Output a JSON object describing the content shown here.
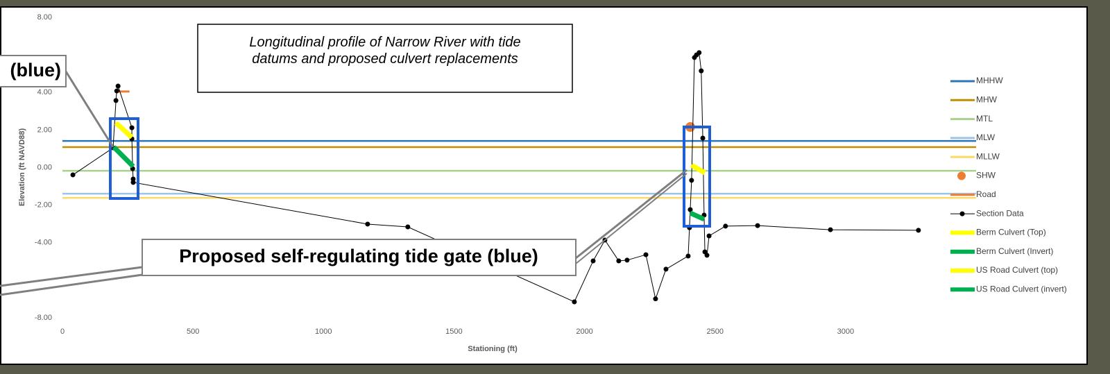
{
  "chart_data": {
    "type": "line",
    "x_label": "Stationing (ft)",
    "y_label": "Elevation (ft NAVD88)",
    "xlim": [
      0,
      3500
    ],
    "xticks": [
      0,
      500,
      1000,
      1500,
      2000,
      2500,
      3000
    ],
    "ylim": [
      -8,
      8
    ],
    "yticks": [
      {
        "value": 8,
        "label": "8.00"
      },
      {
        "value": 4,
        "label": "4.00"
      },
      {
        "value": 2,
        "label": "2.00"
      },
      {
        "value": 0,
        "label": "0.00"
      },
      {
        "value": -2,
        "label": "-2.00"
      },
      {
        "value": -4,
        "label": "-4.00"
      },
      {
        "value": -8,
        "label": "-8.00"
      }
    ],
    "grid": false,
    "legend": "right",
    "annotations": [
      "Longitudinal profile of Narrow River with tide datums and proposed culvert replacements",
      "Proposed self-regulating tide gate (blue)",
      "(blue)"
    ],
    "series": [
      {
        "name": "MHHW",
        "color": "#2e75b6",
        "style": "hline",
        "values": [
          1.42
        ]
      },
      {
        "name": "MHW",
        "color": "#bf8f00",
        "style": "hline",
        "values": [
          1.09
        ]
      },
      {
        "name": "MTL",
        "color": "#a9d18e",
        "style": "hline",
        "values": [
          -0.17
        ]
      },
      {
        "name": "MLW",
        "color": "#9dc3e6",
        "style": "hline",
        "values": [
          -1.39
        ]
      },
      {
        "name": "MLLW",
        "color": "#ffd966",
        "style": "hline",
        "values": [
          -1.61
        ]
      },
      {
        "name": "SHW",
        "color": "#ed7d31",
        "style": "marker",
        "x": [
          2405
        ],
        "values": [
          2.16
        ]
      },
      {
        "name": "Road",
        "color": "#ed7d31",
        "style": "line",
        "x": [
          215,
          257
        ],
        "values": [
          4.05,
          4.05
        ]
      },
      {
        "name": "Section Data",
        "color": "#000000",
        "style": "line-marker",
        "x": [
          40,
          194,
          205,
          208,
          213,
          266,
          266,
          269,
          271,
          271,
          1169,
          1323,
          1961,
          2033,
          2078,
          2131,
          2163,
          2235,
          2272,
          2312,
          2397,
          2402,
          2405,
          2410,
          2421,
          2429,
          2439,
          2447,
          2453,
          2458,
          2461,
          2469,
          2477,
          2540,
          2663,
          2942,
          3279
        ],
        "values": [
          -0.39,
          1.05,
          3.57,
          4.08,
          4.34,
          2.12,
          1.53,
          -0.06,
          -0.61,
          -0.79,
          -3.01,
          -3.16,
          -7.15,
          -4.97,
          -3.86,
          -4.97,
          -4.93,
          -4.64,
          -6.99,
          -5.41,
          -4.71,
          -3.2,
          -2.24,
          -0.68,
          5.86,
          6.0,
          6.12,
          5.15,
          1.57,
          -2.53,
          -4.49,
          -4.67,
          -3.64,
          -3.12,
          -3.09,
          -3.31,
          -3.34
        ]
      },
      {
        "name": "Berm Culvert (Top)",
        "color": "#ffff00",
        "style": "thick",
        "x": [
          205,
          266
        ],
        "values": [
          2.38,
          1.61
        ]
      },
      {
        "name": "Berm Culvert (Invert)",
        "color": "#00b050",
        "style": "thick",
        "x": [
          197,
          271
        ],
        "values": [
          1.09,
          0.06
        ]
      },
      {
        "name": "US Road Culvert (top)",
        "color": "#ffff00",
        "style": "thick",
        "x": [
          2410,
          2461
        ],
        "values": [
          0.13,
          -0.28
        ]
      },
      {
        "name": "US Road Culvert (invert)",
        "color": "#00b050",
        "style": "thick",
        "x": [
          2405,
          2458
        ],
        "values": [
          -2.42,
          -2.75
        ]
      }
    ]
  }
}
